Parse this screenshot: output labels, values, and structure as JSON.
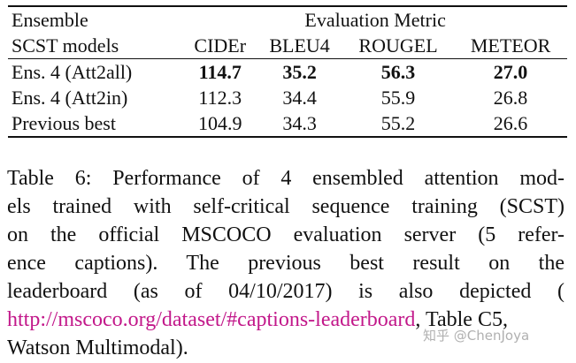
{
  "table": {
    "header": {
      "row1_left": "Ensemble",
      "row1_span": "Evaluation Metric",
      "row2_left": "SCST models",
      "metrics": [
        "CIDEr",
        "BLEU4",
        "ROUGEL",
        "METEOR"
      ]
    },
    "rows": [
      {
        "model": "Ens. 4 (Att2all)",
        "values": [
          "114.7",
          "35.2",
          "56.3",
          "27.0"
        ],
        "bold": true
      },
      {
        "model": "Ens. 4 (Att2in)",
        "values": [
          "112.3",
          "34.4",
          "55.9",
          "26.8"
        ],
        "bold": false
      },
      {
        "model": "Previous best",
        "values": [
          "104.9",
          "34.3",
          "55.2",
          "26.6"
        ],
        "bold": false
      }
    ]
  },
  "caption": {
    "lines": [
      "Table 6:  Performance of 4 ensembled attention mod-",
      "els trained with self-critical sequence training (SCST)",
      "on the official MSCOCO evaluation server (5 refer-",
      "ence captions).    The previous best result on the",
      "leaderboard (as of 04/10/2017) is also depicted ("
    ],
    "link": "http://mscoco.org/dataset/#captions-leaderboard",
    "after_link": ", Table C5,",
    "last_line": "Watson Multimodal)."
  },
  "watermark": "知乎 @ChenJoya"
}
